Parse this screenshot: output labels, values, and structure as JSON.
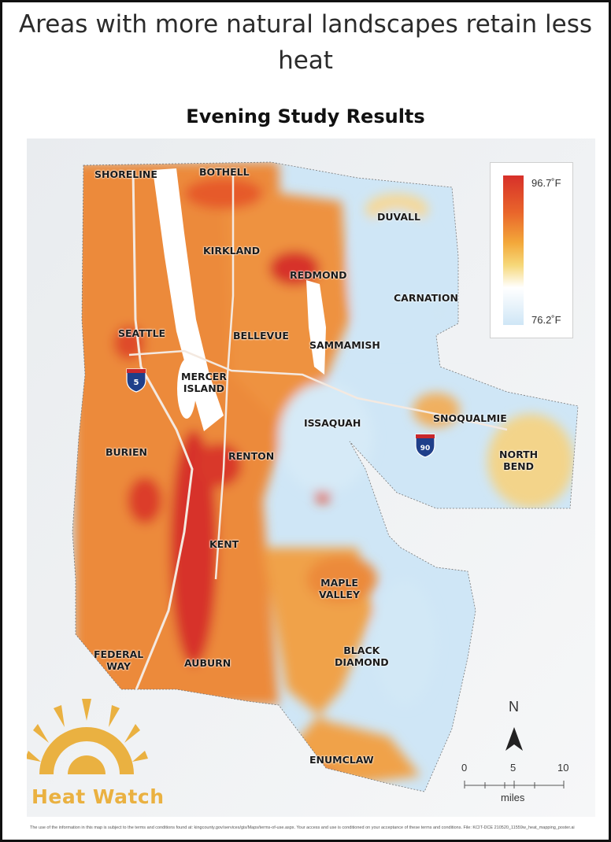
{
  "headline": "Areas with more natural landscapes retain less heat",
  "subtitle": "Evening Study Results",
  "legend": {
    "max": "96.7˚F",
    "min": "76.2˚F",
    "colors": [
      "#d7302a",
      "#e9662b",
      "#f3a83a",
      "#f6d879",
      "#ffffff",
      "#cfe6f6"
    ]
  },
  "places": {
    "shoreline": "SHORELINE",
    "bothell": "BOTHELL",
    "duvall": "DUVALL",
    "kirkland": "KIRKLAND",
    "redmond": "REDMOND",
    "carnation": "CARNATION",
    "seattle": "SEATTLE",
    "bellevue": "BELLEVUE",
    "sammamish": "SAMMAMISH",
    "mercer_island": "MERCER\nISLAND",
    "issaquah": "ISSAQUAH",
    "snoqualmie": "SNOQUALMIE",
    "north_bend": "NORTH\nBEND",
    "burien": "BURIEN",
    "renton": "RENTON",
    "kent": "KENT",
    "maple_valley": "MAPLE\nVALLEY",
    "federal_way": "FEDERAL\nWAY",
    "auburn": "AUBURN",
    "black_diamond": "BLACK\nDIAMOND",
    "enumclaw": "ENUMCLAW"
  },
  "shields": {
    "i5": "5",
    "i90": "90"
  },
  "north": "N",
  "scale": {
    "ticks": [
      "0",
      "5",
      "10"
    ],
    "units": "miles"
  },
  "logo_text": "Heat Watch",
  "disclaimer": "The use of the information in this map is subject to the terms and conditions found at: kingcounty.gov/services/gis/Maps/terms-of-use.aspx. Your access and use is conditioned on your acceptance of these terms and conditions. File: KCIT-DCE 210520_11559w_heat_mapping_poster.ai"
}
